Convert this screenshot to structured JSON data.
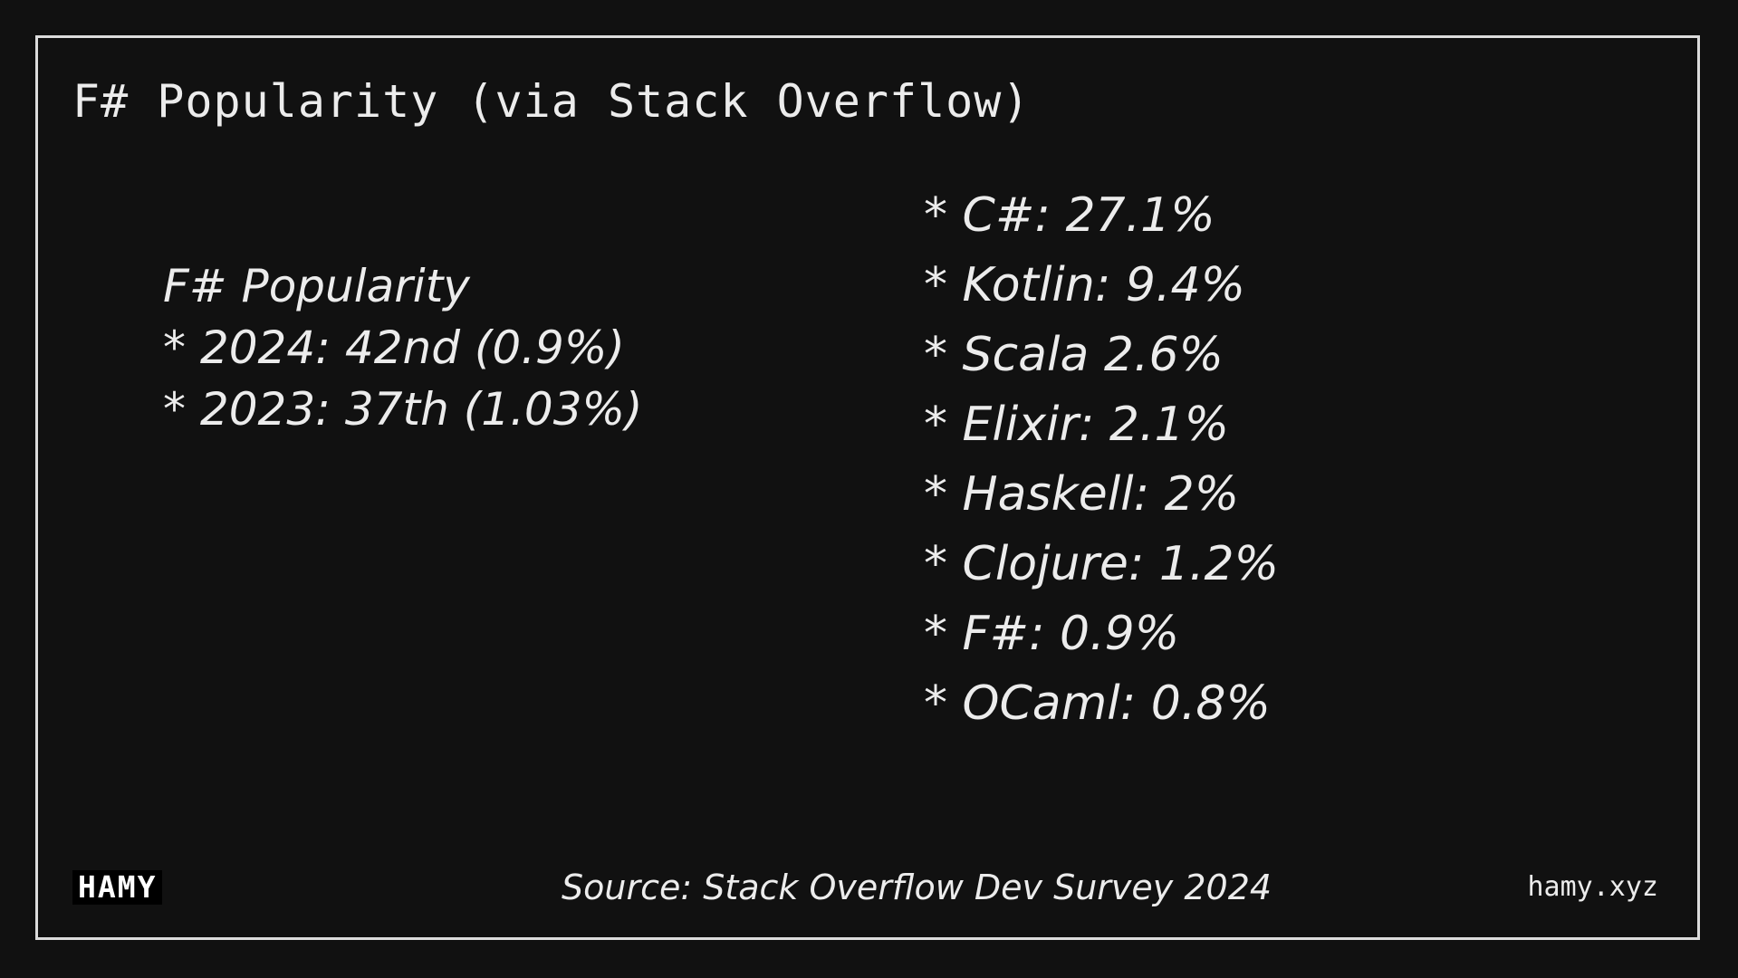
{
  "slide": {
    "title": "F# Popularity (via Stack Overflow)",
    "left": {
      "heading": "F# Popularity",
      "items": [
        "* 2024: 42nd (0.9%)",
        "* 2023: 37th (1.03%)"
      ]
    },
    "right": {
      "items": [
        "* C#: 27.1%",
        "* Kotlin: 9.4%",
        "* Scala 2.6%",
        "* Elixir: 2.1%",
        "* Haskell: 2%",
        "* Clojure: 1.2%",
        "* F#: 0.9%",
        "* OCaml: 0.8%"
      ]
    },
    "footer": {
      "logo": "HAMY",
      "source": "Source: Stack Overflow Dev Survey 2024",
      "site": "hamy.xyz"
    }
  },
  "colors": {
    "background": "#111111",
    "text": "#ececec",
    "frame": "#dcdcdc"
  }
}
